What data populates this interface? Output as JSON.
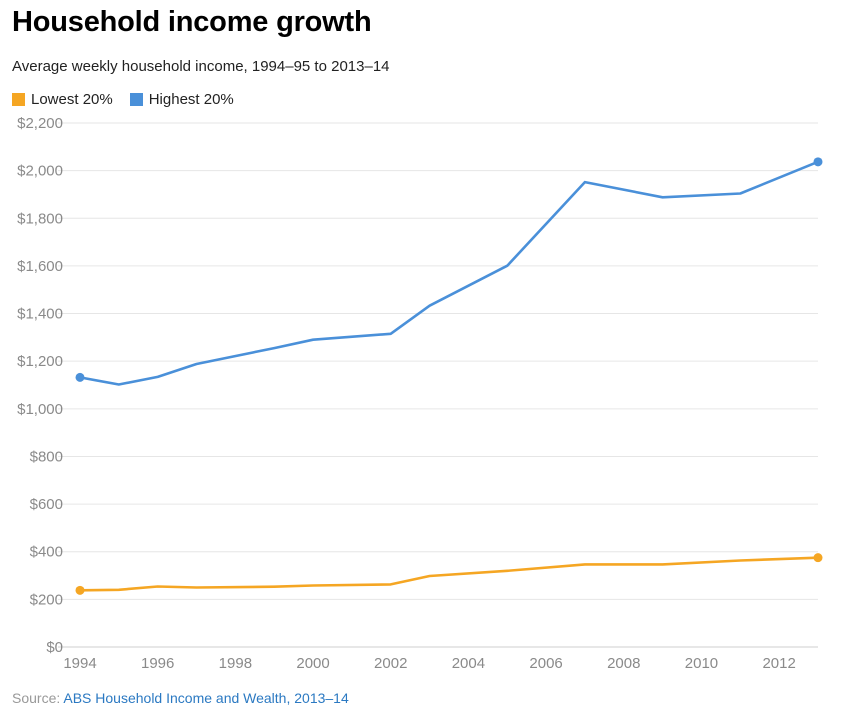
{
  "title": "Household income growth",
  "subtitle": "Average weekly household income, 1994–95 to 2013–14",
  "source": {
    "prefix": "Source:",
    "link_text": "ABS Household Income and Wealth, 2013–14"
  },
  "colors": {
    "lowest": "#f5a623",
    "highest": "#4a90d9",
    "grid": "#e6e6e6",
    "tick": "#8a8a8a"
  },
  "chart_data": {
    "type": "line",
    "ylim": [
      0,
      2200
    ],
    "xlim": [
      1994,
      2013
    ],
    "yticks": [
      0,
      200,
      400,
      600,
      800,
      1000,
      1200,
      1400,
      1600,
      1800,
      2000,
      2200
    ],
    "ytick_labels": [
      "$0",
      "$200",
      "$400",
      "$600",
      "$800",
      "$1,000",
      "$1,200",
      "$1,400",
      "$1,600",
      "$1,800",
      "$2,000",
      "$2,200"
    ],
    "xticks": [
      1994,
      1996,
      1998,
      2000,
      2002,
      2004,
      2006,
      2008,
      2010,
      2012
    ],
    "xtick_labels": [
      "1994",
      "1996",
      "1998",
      "2000",
      "2002",
      "2004",
      "2006",
      "2008",
      "2010",
      "2012"
    ],
    "grid": true,
    "legend": "top-left",
    "series": [
      {
        "name": "Lowest 20%",
        "color": "#f5a623",
        "x": [
          1994,
          1995,
          1996,
          1997,
          1999,
          2000,
          2002,
          2003,
          2005,
          2007,
          2009,
          2011,
          2013
        ],
        "values": [
          238,
          240,
          254,
          250,
          253,
          258,
          263,
          298,
          320,
          347,
          347,
          363,
          375
        ]
      },
      {
        "name": "Highest 20%",
        "color": "#4a90d9",
        "x": [
          1994,
          1995,
          1996,
          1997,
          1999,
          2000,
          2002,
          2003,
          2005,
          2007,
          2009,
          2011,
          2013
        ],
        "values": [
          1132,
          1102,
          1134,
          1188,
          1255,
          1290,
          1315,
          1433,
          1601,
          1952,
          1888,
          1904,
          2037
        ]
      }
    ]
  }
}
